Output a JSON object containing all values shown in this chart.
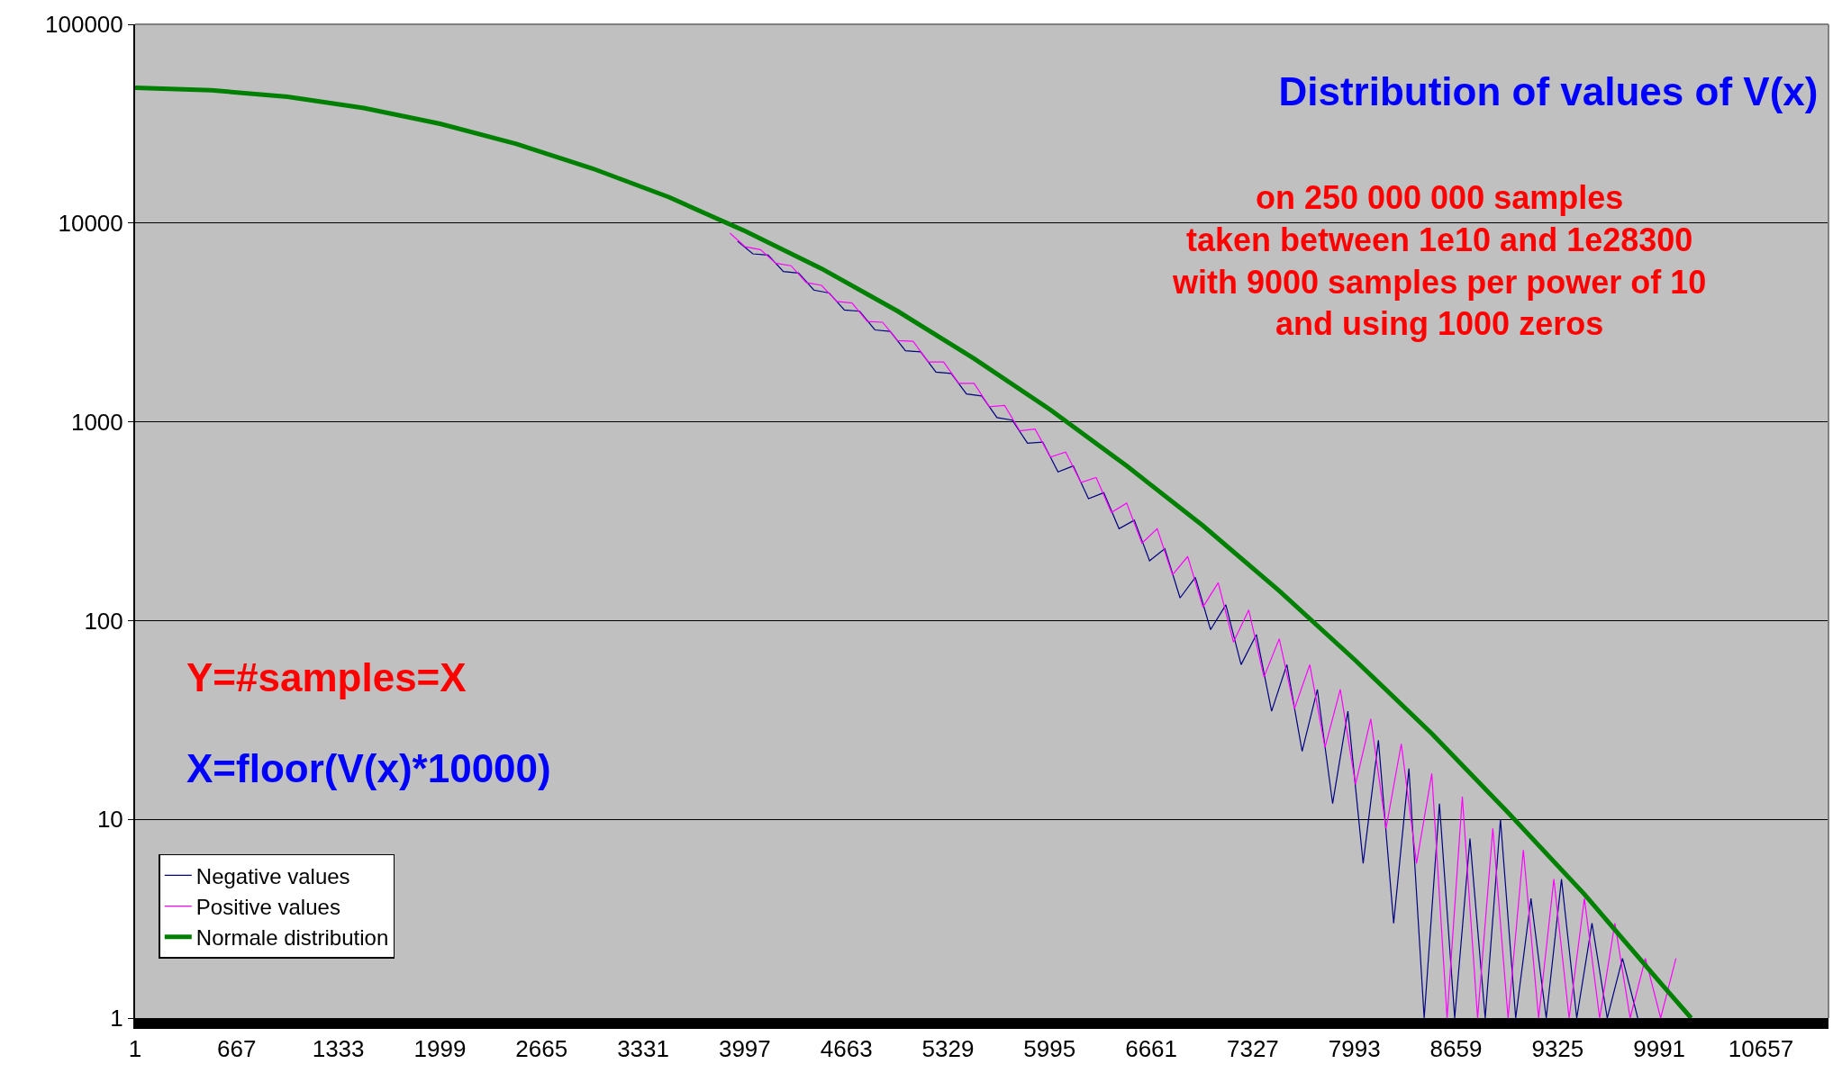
{
  "chart_data": {
    "type": "line",
    "title": "Distribution of values of V(x)",
    "annotations": [
      "on 250 000 000 samples\ntaken between 1e10 and 1e28300\nwith 9000 samples per power of 10\nand using 1000 zeros",
      "Y=#samples=X",
      "X=floor(V(x)*10000)"
    ],
    "log": "y",
    "grid": "y",
    "legend": "bottom left",
    "xlim": [
      1,
      11100
    ],
    "xticks": [
      1,
      667,
      1333,
      1999,
      2665,
      3331,
      3997,
      4663,
      5329,
      5995,
      6661,
      7327,
      7993,
      8659,
      9325,
      9991,
      10657
    ],
    "ylim": [
      1,
      100000
    ],
    "yticks": [
      1,
      10,
      100,
      1000,
      10000,
      100000
    ],
    "series": [
      {
        "name": "Negative values",
        "color": "#000080",
        "x": [
          3950,
          4050,
          4150,
          4250,
          4350,
          4450,
          4550,
          4650,
          4750,
          4850,
          4950,
          5050,
          5150,
          5250,
          5350,
          5450,
          5550,
          5650,
          5750,
          5850,
          5950,
          6050,
          6150,
          6250,
          6350,
          6450,
          6550,
          6650,
          6750,
          6850,
          6950,
          7050,
          7150,
          7250,
          7350,
          7450,
          7550,
          7650,
          7750,
          7850,
          7950,
          8050,
          8150,
          8250,
          8350,
          8450,
          8550,
          8650,
          8750,
          8850,
          8950,
          9050,
          9150,
          9250,
          9350,
          9450,
          9550,
          9650,
          9750,
          9850
        ],
        "values": [
          8100,
          7000,
          6900,
          5700,
          5600,
          4600,
          4450,
          3650,
          3600,
          2900,
          2850,
          2280,
          2250,
          1780,
          1750,
          1380,
          1350,
          1050,
          1020,
          780,
          790,
          560,
          600,
          410,
          440,
          290,
          320,
          200,
          230,
          130,
          165,
          90,
          120,
          60,
          85,
          35,
          60,
          22,
          45,
          12,
          35,
          6,
          25,
          3,
          18,
          1,
          12,
          1,
          8,
          1,
          10,
          1,
          4,
          1,
          5,
          1,
          3,
          1,
          2,
          1
        ]
      },
      {
        "name": "Positive values",
        "color": "#ff00ff",
        "x": [
          3900,
          4000,
          4100,
          4200,
          4300,
          4400,
          4500,
          4600,
          4700,
          4800,
          4900,
          5000,
          5100,
          5200,
          5300,
          5400,
          5500,
          5600,
          5700,
          5800,
          5900,
          6000,
          6100,
          6200,
          6300,
          6400,
          6500,
          6600,
          6700,
          6800,
          6900,
          7000,
          7100,
          7200,
          7300,
          7400,
          7500,
          7600,
          7700,
          7800,
          7900,
          8000,
          8100,
          8200,
          8300,
          8400,
          8500,
          8600,
          8700,
          8800,
          8900,
          9000,
          9100,
          9200,
          9300,
          9400,
          9500,
          9600,
          9700,
          9800,
          9900,
          10000,
          10100
        ],
        "values": [
          8900,
          7600,
          7350,
          6280,
          6100,
          5020,
          4860,
          4030,
          3960,
          3200,
          3170,
          2560,
          2540,
          2000,
          2000,
          1560,
          1560,
          1190,
          1210,
          900,
          920,
          665,
          705,
          495,
          525,
          350,
          390,
          245,
          290,
          170,
          210,
          117,
          155,
          78,
          113,
          52,
          81,
          36,
          60,
          23,
          45,
          15,
          32,
          9,
          24,
          6,
          17,
          1,
          13,
          1,
          9,
          1,
          7,
          1,
          5,
          1,
          4,
          1,
          3,
          1,
          2,
          1,
          2
        ]
      },
      {
        "name": "Normale distribution",
        "color": "#008000",
        "x": [
          1,
          500,
          1000,
          1500,
          2000,
          2500,
          3000,
          3500,
          4000,
          4500,
          5000,
          5500,
          6000,
          6500,
          7000,
          7500,
          8000,
          8500,
          9000,
          9500,
          10000,
          10200
        ],
        "values": [
          48000,
          46600,
          43200,
          37900,
          31600,
          25000,
          18800,
          13500,
          9100,
          5900,
          3600,
          2080,
          1150,
          600,
          300,
          141,
          63,
          27,
          10.8,
          4.2,
          1.5,
          1
        ]
      }
    ]
  }
}
